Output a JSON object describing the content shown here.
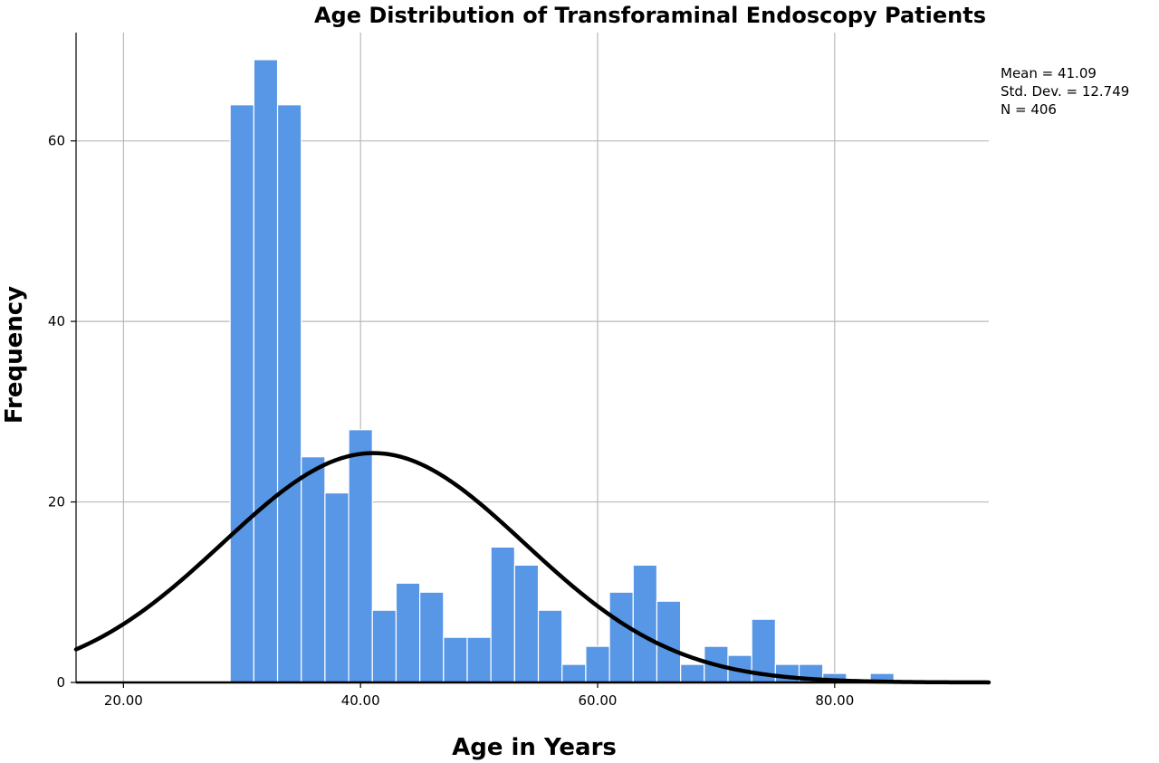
{
  "chart_data": {
    "type": "bar",
    "title": "Age Distribution of Transforaminal Endoscopy Patients",
    "xlabel": "Age in Years",
    "ylabel": "Frequency",
    "bin_width": 2,
    "bin_starts": [
      29,
      31,
      33,
      35,
      37,
      39,
      41,
      43,
      45,
      47,
      49,
      51,
      53,
      55,
      57,
      59,
      61,
      63,
      65,
      67,
      69,
      71,
      73,
      75,
      77,
      79,
      81,
      83
    ],
    "values": [
      64,
      69,
      64,
      25,
      21,
      28,
      8,
      11,
      10,
      5,
      5,
      15,
      13,
      8,
      2,
      4,
      10,
      13,
      9,
      2,
      4,
      3,
      7,
      2,
      2,
      1,
      0,
      1
    ],
    "xlim": [
      16,
      93
    ],
    "ylim": [
      0,
      72
    ],
    "x_ticks": [
      20,
      40,
      60,
      80
    ],
    "x_tick_labels": [
      "20.00",
      "40.00",
      "60.00",
      "80.00"
    ],
    "y_ticks": [
      0,
      20,
      40,
      60
    ],
    "y_tick_labels": [
      "0",
      "20",
      "40",
      "60"
    ],
    "grid": true,
    "bar_color": "#5896e6",
    "normal_curve": {
      "mean": 41.09,
      "std": 12.749,
      "n": 406,
      "color": "#000000"
    },
    "stats_text": [
      "Mean = 41.09",
      "Std. Dev. = 12.749",
      "N = 406"
    ]
  }
}
